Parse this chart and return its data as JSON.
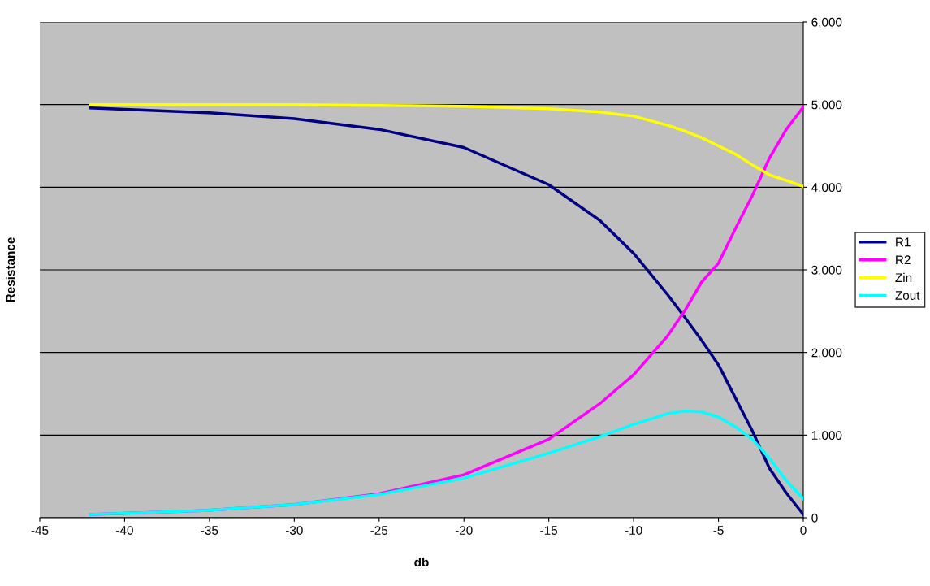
{
  "chart_data": {
    "type": "line",
    "xlabel": "db",
    "ylabel": "Resistance",
    "x": [
      -42,
      -35,
      -30,
      -25,
      -20,
      -15,
      -12,
      -10,
      -8,
      -7,
      -6,
      -5,
      -4,
      -3,
      -2,
      -1,
      0
    ],
    "series": [
      {
        "name": "R1",
        "color": "#000080",
        "values": [
          4960,
          4900,
          4830,
          4700,
          4480,
          4030,
          3600,
          3200,
          2700,
          2430,
          2150,
          1850,
          1450,
          1050,
          600,
          300,
          40
        ]
      },
      {
        "name": "R2",
        "color": "#ff00ff",
        "values": [
          40,
          90,
          160,
          290,
          520,
          950,
          1380,
          1730,
          2200,
          2500,
          2850,
          3080,
          3500,
          3900,
          4350,
          4700,
          4970
        ]
      },
      {
        "name": "Zin",
        "color": "#ffff00",
        "values": [
          5000,
          5000,
          5000,
          4990,
          4980,
          4950,
          4910,
          4860,
          4750,
          4680,
          4600,
          4500,
          4400,
          4270,
          4150,
          4080,
          4010
        ]
      },
      {
        "name": "Zout",
        "color": "#00ffff",
        "values": [
          40,
          90,
          160,
          280,
          480,
          780,
          980,
          1130,
          1260,
          1290,
          1280,
          1220,
          1100,
          950,
          720,
          450,
          230
        ]
      }
    ],
    "xlim": [
      -45,
      0
    ],
    "xticks": [
      -45,
      -40,
      -35,
      -30,
      -25,
      -20,
      -15,
      -10,
      -5,
      0
    ],
    "ylim": [
      0,
      6000
    ],
    "yticks": [
      0,
      {
        "value": 1000,
        "label": "1,000"
      },
      {
        "value": 2000,
        "label": "2,000"
      },
      {
        "value": 3000,
        "label": "3,000"
      },
      {
        "value": 4000,
        "label": "4,000"
      },
      {
        "value": 5000,
        "label": "5,000"
      },
      {
        "value": 6000,
        "label": "6,000"
      }
    ],
    "grid": "y",
    "legend": "right",
    "marker": "none",
    "line_style": "solid"
  }
}
